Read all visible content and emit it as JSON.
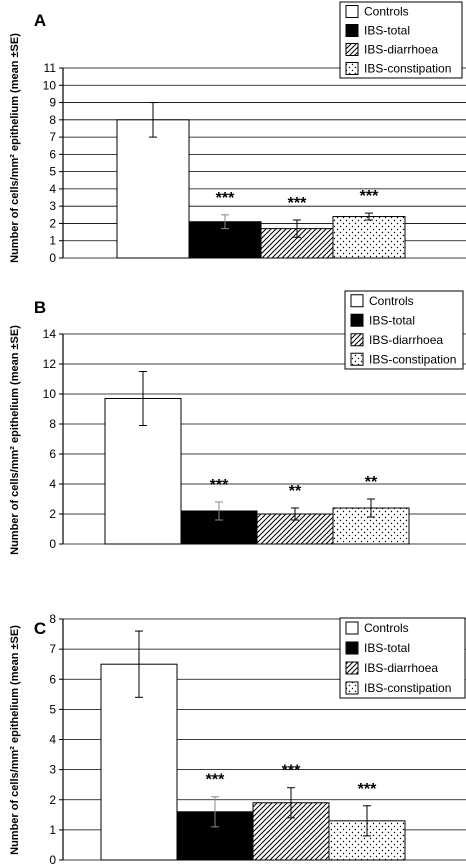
{
  "chart_data": [
    {
      "panel": "A",
      "type": "bar",
      "categories": [
        "Controls",
        "IBS-total",
        "IBS-diarrhoea",
        "IBS-constipation"
      ],
      "values": [
        8.0,
        2.1,
        1.7,
        2.4
      ],
      "errors": [
        1.0,
        0.4,
        0.5,
        0.2
      ],
      "significance": [
        "",
        "***",
        "***",
        "***"
      ],
      "ylabel": "Number of cells/mm² epithelium (mean ±SE)",
      "ylim": [
        0,
        11
      ],
      "yticks": [
        0,
        1,
        2,
        3,
        4,
        5,
        6,
        7,
        8,
        9,
        10,
        11
      ],
      "grid": true,
      "legend": [
        "Controls",
        "IBS-total",
        "IBS-diarrhoea",
        "IBS-constipation"
      ],
      "legend_position": "top-right",
      "fills": [
        "white",
        "black",
        "hatch",
        "dots"
      ]
    },
    {
      "panel": "B",
      "type": "bar",
      "categories": [
        "Controls",
        "IBS-total",
        "IBS-diarrhoea",
        "IBS-constipation"
      ],
      "values": [
        9.7,
        2.2,
        2.0,
        2.4
      ],
      "errors": [
        1.8,
        0.6,
        0.4,
        0.6
      ],
      "significance": [
        "",
        "***",
        "**",
        "**"
      ],
      "ylabel": "Number of cells/mm² epithelium (mean ±SE)",
      "ylim": [
        0,
        14
      ],
      "yticks": [
        0,
        2,
        4,
        6,
        8,
        10,
        12,
        14
      ],
      "grid": true,
      "legend": [
        "Controls",
        "IBS-total",
        "IBS-diarrhoea",
        "IBS-constipation"
      ],
      "legend_position": "top-right",
      "fills": [
        "white",
        "black",
        "hatch",
        "dots"
      ]
    },
    {
      "panel": "C",
      "type": "bar",
      "categories": [
        "Controls",
        "IBS-total",
        "IBS-diarrhoea",
        "IBS-constipation"
      ],
      "values": [
        6.5,
        1.6,
        1.9,
        1.3
      ],
      "errors": [
        1.1,
        0.5,
        0.5,
        0.5
      ],
      "significance": [
        "",
        "***",
        "***",
        "***"
      ],
      "ylabel": "Number of cells/mm² epithelium (mean ±SE)",
      "ylim": [
        0,
        8
      ],
      "yticks": [
        0,
        1,
        2,
        3,
        4,
        5,
        6,
        7,
        8
      ],
      "grid": true,
      "legend": [
        "Controls",
        "IBS-total",
        "IBS-diarrhoea",
        "IBS-constipation"
      ],
      "legend_position": "top-right",
      "fills": [
        "white",
        "black",
        "hatch",
        "dots"
      ]
    }
  ]
}
